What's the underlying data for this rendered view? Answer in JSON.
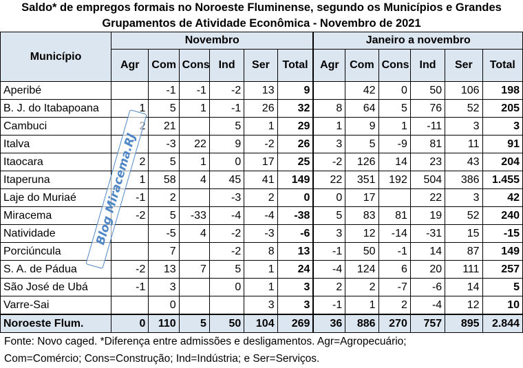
{
  "title": {
    "line1": "Saldo* de empregos formais no Noroeste Fluminense, segundo os Municípios e Grandes",
    "line2": "Grupamentos de Atividade Econômica - Novembro de 2021"
  },
  "header": {
    "municipio": "Município",
    "group1": "Novembro",
    "group2": "Janeiro a novembro",
    "columns": [
      "Agr",
      "Com",
      "Cons",
      "Ind",
      "Ser",
      "Total",
      "Agr",
      "Com",
      "Cons",
      "Ind",
      "Ser",
      "Total"
    ]
  },
  "rows": [
    {
      "name": "Aperibé",
      "values": [
        "",
        "-1",
        "-1",
        "-2",
        "13",
        "9",
        "",
        "42",
        "0",
        "50",
        "106",
        "198"
      ]
    },
    {
      "name": "B. J. do Itabapoana",
      "values": [
        "1",
        "5",
        "1",
        "-1",
        "26",
        "32",
        "8",
        "64",
        "5",
        "76",
        "52",
        "205"
      ]
    },
    {
      "name": "Cambuci",
      "values": [
        "2",
        "21",
        "",
        "5",
        "1",
        "29",
        "1",
        "9",
        "1",
        "-11",
        "3",
        "3"
      ]
    },
    {
      "name": "Italva",
      "values": [
        "",
        "-3",
        "22",
        "9",
        "-2",
        "26",
        "3",
        "5",
        "-9",
        "81",
        "11",
        "91"
      ]
    },
    {
      "name": "Itaocara",
      "values": [
        "2",
        "5",
        "1",
        "0",
        "17",
        "25",
        "-2",
        "126",
        "14",
        "23",
        "43",
        "204"
      ]
    },
    {
      "name": "Itaperuna",
      "values": [
        "1",
        "58",
        "4",
        "45",
        "41",
        "149",
        "22",
        "351",
        "192",
        "504",
        "386",
        "1.455"
      ]
    },
    {
      "name": "Laje do Muriaé",
      "values": [
        "-1",
        "2",
        "",
        "-3",
        "2",
        "0",
        "0",
        "17",
        "",
        "22",
        "3",
        "42"
      ]
    },
    {
      "name": "Miracema",
      "values": [
        "-2",
        "5",
        "-33",
        "-4",
        "-4",
        "-38",
        "5",
        "83",
        "81",
        "19",
        "52",
        "240"
      ]
    },
    {
      "name": "Natividade",
      "values": [
        "",
        "-5",
        "4",
        "-2",
        "-3",
        "-6",
        "3",
        "12",
        "-14",
        "-31",
        "15",
        "-15"
      ]
    },
    {
      "name": "Porciúncula",
      "values": [
        "",
        "7",
        "",
        "-2",
        "8",
        "13",
        "-1",
        "50",
        "-1",
        "14",
        "87",
        "149"
      ]
    },
    {
      "name": "S. A. de Pádua",
      "values": [
        "-2",
        "13",
        "7",
        "5",
        "1",
        "24",
        "-4",
        "124",
        "6",
        "20",
        "111",
        "257"
      ]
    },
    {
      "name": "São José de Ubá",
      "values": [
        "-1",
        "3",
        "",
        "0",
        "1",
        "3",
        "2",
        "2",
        "-7",
        "-6",
        "14",
        "5"
      ]
    },
    {
      "name": "Varre-Sai",
      "values": [
        "",
        "0",
        "",
        "",
        "3",
        "3",
        "-1",
        "1",
        "2",
        "-4",
        "12",
        "10"
      ]
    }
  ],
  "total_row": {
    "name": "Noroeste Flum.",
    "values": [
      "0",
      "110",
      "5",
      "50",
      "104",
      "269",
      "36",
      "886",
      "270",
      "757",
      "895",
      "2.844"
    ]
  },
  "footer": {
    "line1": "Fonte: Novo caged. *Diferença entre admissões e desligamentos. Agr=Agropecuário;",
    "line2": "Com=Comércio; Cons=Construção; Ind=Indústria; e Ser=Serviços."
  },
  "watermark": "Blog Miracema.RJ",
  "colors": {
    "header_fill": "#dce6f1",
    "watermark": "#4f86c6"
  }
}
